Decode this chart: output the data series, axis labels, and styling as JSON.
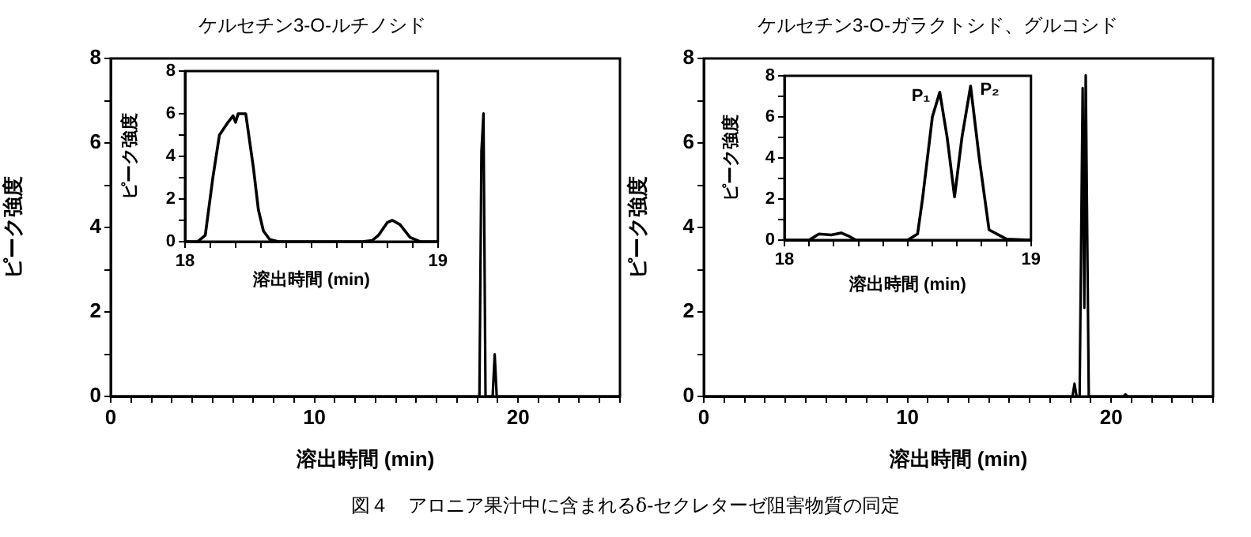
{
  "chart_data": [
    {
      "type": "line",
      "title": "ケルセチン3-O-ルチノシド",
      "xlabel": "溶出時間 (min)",
      "ylabel": "ピーク強度",
      "xlim": [
        0,
        25
      ],
      "ylim": [
        0,
        8
      ],
      "xticks": [
        0,
        {
          "value": 1,
          "label": null
        },
        {
          "value": 2,
          "label": null
        },
        {
          "value": 3,
          "label": null
        },
        {
          "value": 4,
          "label": null
        },
        {
          "value": 5,
          "label": null
        },
        {
          "value": 6,
          "label": null
        },
        {
          "value": 7,
          "label": null
        },
        {
          "value": 8,
          "label": null
        },
        {
          "value": 9,
          "label": null
        },
        10,
        {
          "value": 11,
          "label": null
        },
        {
          "value": 12,
          "label": null
        },
        {
          "value": 13,
          "label": null
        },
        {
          "value": 14,
          "label": null
        },
        {
          "value": 15,
          "label": null
        },
        {
          "value": 16,
          "label": null
        },
        {
          "value": 17,
          "label": null
        },
        {
          "value": 18,
          "label": null
        },
        {
          "value": 19,
          "label": null
        },
        20,
        {
          "value": 21,
          "label": null
        },
        {
          "value": 22,
          "label": null
        },
        {
          "value": 23,
          "label": null
        },
        {
          "value": 24,
          "label": null
        },
        {
          "value": 25,
          "label": null
        }
      ],
      "yticks": [
        0,
        {
          "value": 1,
          "label": null
        },
        2,
        {
          "value": 3,
          "label": null
        },
        4,
        {
          "value": 5,
          "label": null
        },
        6,
        {
          "value": 7,
          "label": null
        },
        8
      ],
      "grid": false,
      "legend": false,
      "marker": "none",
      "line_style": "solid",
      "series": [
        {
          "color": "#000000",
          "x": [
            0,
            18.1,
            18.2,
            18.3,
            18.4,
            18.75,
            18.85,
            18.95,
            25
          ],
          "values": [
            0,
            0,
            5.8,
            6.7,
            0,
            0,
            1.0,
            0,
            0
          ]
        }
      ],
      "annotations": [
        "図４　アロニア果汁中に含まれるδ-セクレターゼ阻害物質の同定"
      ]
    },
    {
      "type": "line",
      "xlabel": "溶出時間 (min)",
      "ylabel": "ピーク強度",
      "xlim": [
        18,
        19
      ],
      "ylim": [
        0,
        8
      ],
      "xticks": [
        18,
        {
          "value": 18.1,
          "label": null
        },
        {
          "value": 18.2,
          "label": null
        },
        {
          "value": 18.3,
          "label": null
        },
        {
          "value": 18.4,
          "label": null
        },
        {
          "value": 18.5,
          "label": null
        },
        {
          "value": 18.6,
          "label": null
        },
        {
          "value": 18.7,
          "label": null
        },
        {
          "value": 18.8,
          "label": null
        },
        {
          "value": 18.9,
          "label": null
        },
        19
      ],
      "yticks": [
        0,
        {
          "value": 1,
          "label": null
        },
        2,
        {
          "value": 3,
          "label": null
        },
        4,
        {
          "value": 5,
          "label": null
        },
        6,
        8
      ],
      "grid": false,
      "legend": false,
      "marker": "none",
      "line_style": "solid",
      "series": [
        {
          "color": "#000000",
          "x": [
            18,
            18.05,
            18.08,
            18.11,
            18.136,
            18.17,
            18.19,
            18.2,
            18.21,
            18.22,
            18.24,
            18.27,
            18.29,
            18.31,
            18.335,
            18.37,
            18.5,
            18.7,
            18.74,
            18.765,
            18.8,
            18.82,
            18.85,
            18.89,
            18.93,
            19
          ],
          "values": [
            0,
            0,
            0.3,
            3,
            5,
            5.6,
            5.9,
            5.6,
            6,
            6,
            6,
            3.5,
            1.5,
            0.5,
            0.1,
            0,
            0,
            0,
            0.05,
            0.3,
            0.9,
            1.0,
            0.8,
            0.2,
            0,
            0
          ]
        }
      ]
    },
    {
      "type": "line",
      "title": "ケルセチン3-O-ガラクトシド、グルコシド",
      "xlabel": "溶出時間 (min)",
      "ylabel": "ピーク強度",
      "xlim": [
        0,
        25
      ],
      "ylim": [
        0,
        8
      ],
      "xticks": [
        0,
        {
          "value": 1,
          "label": null
        },
        {
          "value": 2,
          "label": null
        },
        {
          "value": 3,
          "label": null
        },
        {
          "value": 4,
          "label": null
        },
        {
          "value": 5,
          "label": null
        },
        {
          "value": 6,
          "label": null
        },
        {
          "value": 7,
          "label": null
        },
        {
          "value": 8,
          "label": null
        },
        {
          "value": 9,
          "label": null
        },
        10,
        {
          "value": 11,
          "label": null
        },
        {
          "value": 12,
          "label": null
        },
        {
          "value": 13,
          "label": null
        },
        {
          "value": 14,
          "label": null
        },
        {
          "value": 15,
          "label": null
        },
        {
          "value": 16,
          "label": null
        },
        {
          "value": 17,
          "label": null
        },
        {
          "value": 18,
          "label": null
        },
        {
          "value": 19,
          "label": null
        },
        20,
        {
          "value": 21,
          "label": null
        },
        {
          "value": 22,
          "label": null
        },
        {
          "value": 23,
          "label": null
        },
        {
          "value": 24,
          "label": null
        },
        {
          "value": 25,
          "label": null
        }
      ],
      "yticks": [
        0,
        {
          "value": 1,
          "label": null
        },
        2,
        {
          "value": 3,
          "label": null
        },
        4,
        {
          "value": 5,
          "label": null
        },
        6,
        {
          "value": 7,
          "label": null
        },
        8
      ],
      "grid": false,
      "legend": false,
      "marker": "none",
      "line_style": "solid",
      "series": [
        {
          "color": "#000000",
          "x": [
            0,
            18.1,
            18.2,
            18.3,
            18.45,
            18.6,
            18.68,
            18.75,
            18.9,
            20.6,
            20.7,
            20.8,
            25
          ],
          "values": [
            0,
            0,
            0.3,
            0,
            0,
            7.3,
            2.1,
            7.6,
            0,
            0,
            0.05,
            0,
            0
          ]
        }
      ]
    },
    {
      "type": "line",
      "xlabel": "溶出時間 (min)",
      "ylabel": "ピーク強度",
      "xlim": [
        18,
        19
      ],
      "ylim": [
        0,
        8
      ],
      "xticks": [
        18,
        {
          "value": 18.1,
          "label": null
        },
        {
          "value": 18.2,
          "label": null
        },
        {
          "value": 18.3,
          "label": null
        },
        {
          "value": 18.4,
          "label": null
        },
        {
          "value": 18.5,
          "label": null
        },
        {
          "value": 18.6,
          "label": null
        },
        {
          "value": 18.7,
          "label": null
        },
        {
          "value": 18.8,
          "label": null
        },
        {
          "value": 18.9,
          "label": null
        },
        19
      ],
      "yticks": [
        0,
        {
          "value": 1,
          "label": null
        },
        2,
        {
          "value": 3,
          "label": null
        },
        4,
        {
          "value": 5,
          "label": null
        },
        6,
        {
          "value": 7,
          "label": null
        },
        8
      ],
      "grid": false,
      "legend": false,
      "marker": "none",
      "line_style": "solid",
      "series": [
        {
          "color": "#000000",
          "x": [
            18,
            18.1,
            18.14,
            18.19,
            18.23,
            18.26,
            18.29,
            18.4,
            18.5,
            18.54,
            18.56,
            18.6,
            18.63,
            18.66,
            18.69,
            18.72,
            18.755,
            18.79,
            18.83,
            18.9,
            19
          ],
          "values": [
            0,
            0,
            0.3,
            0.25,
            0.35,
            0.2,
            0,
            0,
            0,
            0.3,
            2,
            6,
            7.2,
            5,
            2.1,
            5,
            7.5,
            4,
            0.5,
            0.05,
            0
          ]
        }
      ],
      "annotations": [
        {
          "text": "P₁",
          "x": 18.63,
          "y": 7.2
        },
        {
          "text": "P₂",
          "x": 18.755,
          "y": 7.5
        }
      ]
    }
  ]
}
